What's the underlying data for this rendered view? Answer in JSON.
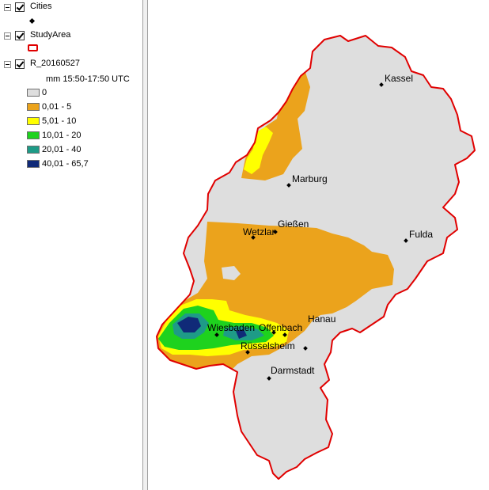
{
  "toc": {
    "layers": [
      {
        "name": "Cities",
        "checked": true,
        "symbol": "black-diamond"
      },
      {
        "name": "StudyArea",
        "checked": true,
        "symbol": "red-outline-rectangle"
      },
      {
        "name": "R_20160527",
        "checked": true,
        "field_label": "mm 15:50-17:50 UTC",
        "classes": [
          {
            "label": "0",
            "color": "#dedede"
          },
          {
            "label": "0,01 - 5",
            "color": "#eba31c"
          },
          {
            "label": "5,01 - 10",
            "color": "#ffff00"
          },
          {
            "label": "10,01 - 20",
            "color": "#1ed21e"
          },
          {
            "label": "20,01 - 40",
            "color": "#1e9b87"
          },
          {
            "label": "40,01 - 65,7",
            "color": "#102a78"
          }
        ]
      }
    ]
  },
  "map": {
    "boundary_color": "#e00000",
    "cities": [
      "Kassel",
      "Marburg",
      "Gießen",
      "Wetzlar",
      "Fulda",
      "Hanau",
      "Wiesbaden",
      "Offenbach",
      "Rüsselsheim",
      "Darmstadt"
    ]
  }
}
